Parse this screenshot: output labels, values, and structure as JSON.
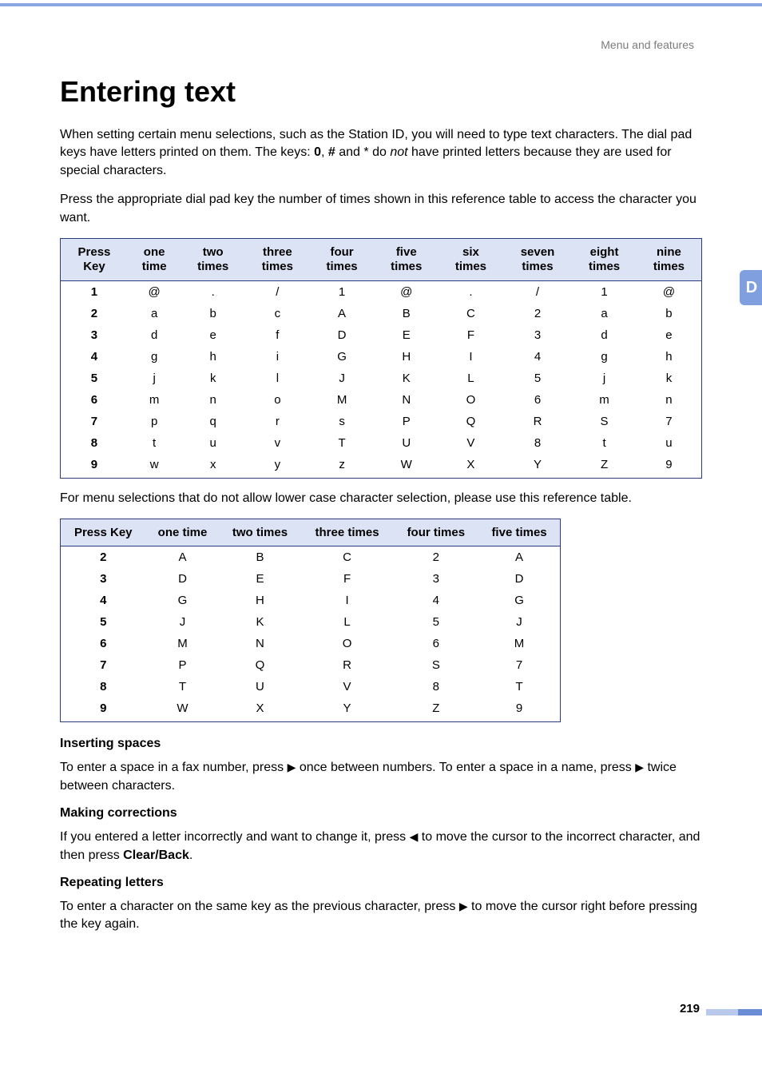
{
  "breadcrumb": "Menu and features",
  "side_tab": "D",
  "title": "Entering text",
  "intro1_a": "When setting certain menu selections, such as the Station ID, you will need to type text characters. The dial pad keys have letters printed on them. The keys: ",
  "intro1_bold1": "0",
  "intro1_comma": ", ",
  "intro1_bold2": "#",
  "intro1_b": " and ",
  "intro1_star": "*",
  "intro1_c": " do ",
  "intro1_not": "not",
  "intro1_d": " have printed letters because they are used for special characters.",
  "intro2": "Press the appropriate dial pad key the number of times shown in this reference table to access the character you want.",
  "table1": {
    "headers": [
      "Press Key",
      "one time",
      "two times",
      "three times",
      "four times",
      "five times",
      "six times",
      "seven times",
      "eight times",
      "nine times"
    ],
    "rows": [
      [
        "1",
        "@",
        ".",
        "/",
        "1",
        "@",
        ".",
        "/",
        "1",
        "@"
      ],
      [
        "2",
        "a",
        "b",
        "c",
        "A",
        "B",
        "C",
        "2",
        "a",
        "b"
      ],
      [
        "3",
        "d",
        "e",
        "f",
        "D",
        "E",
        "F",
        "3",
        "d",
        "e"
      ],
      [
        "4",
        "g",
        "h",
        "i",
        "G",
        "H",
        "I",
        "4",
        "g",
        "h"
      ],
      [
        "5",
        "j",
        "k",
        "l",
        "J",
        "K",
        "L",
        "5",
        "j",
        "k"
      ],
      [
        "6",
        "m",
        "n",
        "o",
        "M",
        "N",
        "O",
        "6",
        "m",
        "n"
      ],
      [
        "7",
        "p",
        "q",
        "r",
        "s",
        "P",
        "Q",
        "R",
        "S",
        "7"
      ],
      [
        "8",
        "t",
        "u",
        "v",
        "T",
        "U",
        "V",
        "8",
        "t",
        "u"
      ],
      [
        "9",
        "w",
        "x",
        "y",
        "z",
        "W",
        "X",
        "Y",
        "Z",
        "9"
      ]
    ]
  },
  "intro3": "For menu selections that do not allow lower case character selection, please use this reference table.",
  "table2": {
    "headers": [
      "Press Key",
      "one time",
      "two times",
      "three times",
      "four times",
      "five times"
    ],
    "rows": [
      [
        "2",
        "A",
        "B",
        "C",
        "2",
        "A"
      ],
      [
        "3",
        "D",
        "E",
        "F",
        "3",
        "D"
      ],
      [
        "4",
        "G",
        "H",
        "I",
        "4",
        "G"
      ],
      [
        "5",
        "J",
        "K",
        "L",
        "5",
        "J"
      ],
      [
        "6",
        "M",
        "N",
        "O",
        "6",
        "M"
      ],
      [
        "7",
        "P",
        "Q",
        "R",
        "S",
        "7"
      ],
      [
        "8",
        "T",
        "U",
        "V",
        "8",
        "T"
      ],
      [
        "9",
        "W",
        "X",
        "Y",
        "Z",
        "9"
      ]
    ]
  },
  "sec1_head": "Inserting spaces",
  "sec1_a": "To enter a space in a fax number, press ",
  "sec1_b": " once between numbers. To enter a space in a name, press ",
  "sec1_c": " twice between characters.",
  "arrow_right": "▶",
  "arrow_left": "◀",
  "sec2_head": "Making corrections",
  "sec2_a": "If you entered a letter incorrectly and want to change it, press ",
  "sec2_b": " to move the cursor to the incorrect character, and then press ",
  "sec2_bold": "Clear/Back",
  "sec2_c": ".",
  "sec3_head": "Repeating letters",
  "sec3_a": "To enter a character on the same key as the previous character, press ",
  "sec3_b": " to move the cursor right before pressing the key again.",
  "page_number": "219"
}
